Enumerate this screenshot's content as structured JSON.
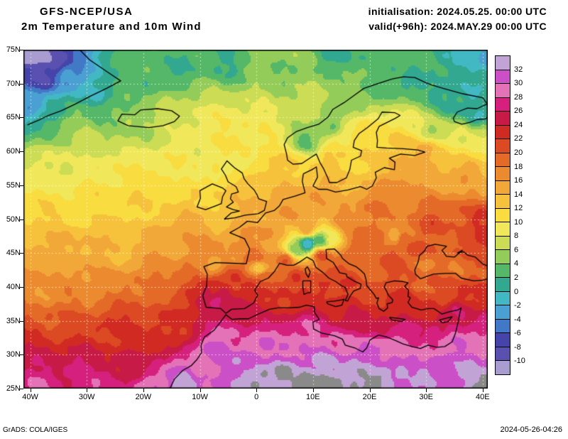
{
  "header": {
    "model": "GFS-NCEP/USA",
    "product": "2m Temperature and 10m Wind",
    "initialisation": "initialisation: 2024.05.25. 00:00 UTC",
    "valid": "valid(+96h): 2024.MAY.29 00:00 UTC"
  },
  "axes": {
    "lat_labels": [
      "75N",
      "70N",
      "65N",
      "60N",
      "55N",
      "50N",
      "45N",
      "40N",
      "35N",
      "30N",
      "25N"
    ],
    "lat_values": [
      75,
      70,
      65,
      60,
      55,
      50,
      45,
      40,
      35,
      30,
      25
    ],
    "lon_labels": [
      "40W",
      "30W",
      "20W",
      "10W",
      "0",
      "10E",
      "20E",
      "30E",
      "40E"
    ],
    "lon_values": [
      -40,
      -30,
      -20,
      -10,
      0,
      10,
      20,
      30,
      40
    ]
  },
  "colorbar": {
    "tick_labels": [
      "32",
      "30",
      "28",
      "26",
      "24",
      "22",
      "20",
      "18",
      "16",
      "14",
      "12",
      "10",
      "8",
      "6",
      "4",
      "2",
      "0",
      "-2",
      "-4",
      "-6",
      "-8",
      "-10"
    ],
    "segments": [
      {
        "min": 32,
        "color": "#c2a3d6"
      },
      {
        "min": 30,
        "color": "#cb4fc6"
      },
      {
        "min": 28,
        "color": "#e472b6"
      },
      {
        "min": 26,
        "color": "#d6207e"
      },
      {
        "min": 24,
        "color": "#c81a46"
      },
      {
        "min": 22,
        "color": "#d12a22"
      },
      {
        "min": 20,
        "color": "#dc4a24"
      },
      {
        "min": 18,
        "color": "#e46a28"
      },
      {
        "min": 16,
        "color": "#ec8a30"
      },
      {
        "min": 14,
        "color": "#f2a838"
      },
      {
        "min": 12,
        "color": "#f6c23c"
      },
      {
        "min": 10,
        "color": "#f8dc40"
      },
      {
        "min": 8,
        "color": "#f0e85a"
      },
      {
        "min": 6,
        "color": "#ccdc54"
      },
      {
        "min": 4,
        "color": "#94cc5a"
      },
      {
        "min": 2,
        "color": "#54b868"
      },
      {
        "min": 0,
        "color": "#32a890"
      },
      {
        "min": -2,
        "color": "#42b8c4"
      },
      {
        "min": -4,
        "color": "#4aa0d2"
      },
      {
        "min": -6,
        "color": "#4279c6"
      },
      {
        "min": -8,
        "color": "#4444aa"
      },
      {
        "min": -10,
        "color": "#5a50b0"
      },
      {
        "min": -999,
        "color": "#a89cd0"
      }
    ]
  },
  "footer": {
    "grads": "GrADS: COLA/IGES",
    "timestamp": "2024-05-26-04:26"
  },
  "chart_data": {
    "type": "heatmap",
    "title": "GFS-NCEP/USA 2m Temperature and 10m Wind",
    "units": "degC",
    "lon_range": [
      -41.2,
      40.9
    ],
    "lat_range": [
      25,
      75
    ],
    "levels": [
      32,
      30,
      28,
      26,
      24,
      22,
      20,
      18,
      16,
      14,
      12,
      10,
      8,
      6,
      4,
      2,
      0,
      -2,
      -4,
      -6,
      -8,
      -10
    ],
    "overflow_color": "#8a8a8a",
    "temperature_points_format": [
      "lon",
      "lat",
      "t2m_estimate_degC"
    ],
    "temperature_points": [
      [
        -40,
        75,
        -14
      ],
      [
        -36,
        73.5,
        -9
      ],
      [
        -38,
        71,
        -8
      ],
      [
        -33,
        71,
        -4
      ],
      [
        -40,
        67,
        -4
      ],
      [
        -36,
        66,
        1
      ],
      [
        -33,
        64,
        4
      ],
      [
        -28,
        69,
        0
      ],
      [
        -25,
        66,
        4
      ],
      [
        -30,
        62,
        7
      ],
      [
        -20,
        70,
        3
      ],
      [
        -15,
        72,
        2
      ],
      [
        -5,
        73,
        2
      ],
      [
        5,
        72,
        4
      ],
      [
        15,
        74,
        2
      ],
      [
        25,
        73,
        2
      ],
      [
        35,
        74,
        0
      ],
      [
        42,
        74,
        -3
      ],
      [
        43,
        71,
        1
      ],
      [
        -19,
        65,
        6
      ],
      [
        -17,
        64.8,
        7
      ],
      [
        -21,
        64.2,
        6
      ],
      [
        -35,
        58,
        9
      ],
      [
        -25,
        57,
        9.5
      ],
      [
        -30,
        52,
        11
      ],
      [
        -38,
        50,
        12
      ],
      [
        -20,
        52,
        11.5
      ],
      [
        -14,
        57,
        10
      ],
      [
        -10,
        60,
        9
      ],
      [
        0,
        60,
        10
      ],
      [
        -35,
        45,
        14
      ],
      [
        -25,
        45,
        14
      ],
      [
        -15,
        46,
        15
      ],
      [
        -4,
        45,
        16
      ],
      [
        -38,
        40,
        17
      ],
      [
        -28,
        40,
        17
      ],
      [
        -18,
        40,
        18
      ],
      [
        -35,
        34,
        21
      ],
      [
        -25,
        33,
        22
      ],
      [
        -15,
        33,
        22
      ],
      [
        -38,
        29,
        25
      ],
      [
        -30,
        28,
        26
      ],
      [
        -22,
        28,
        25
      ],
      [
        -39,
        25.5,
        28
      ],
      [
        -28,
        25.5,
        28
      ],
      [
        -18,
        25.5,
        30
      ],
      [
        -13,
        25.5,
        33
      ],
      [
        -10,
        28,
        29
      ],
      [
        -8,
        53.5,
        12
      ],
      [
        -3,
        54,
        13
      ],
      [
        -4.5,
        57.5,
        9
      ],
      [
        0,
        52,
        14.5
      ],
      [
        3,
        56,
        12
      ],
      [
        -6,
        50,
        13
      ],
      [
        2,
        48,
        17
      ],
      [
        0,
        44.5,
        19
      ],
      [
        5,
        44,
        20
      ],
      [
        6,
        51,
        16
      ],
      [
        10,
        52.5,
        16.5
      ],
      [
        9,
        48.5,
        16
      ],
      [
        -8,
        43,
        15
      ],
      [
        -4,
        41.5,
        22
      ],
      [
        -6,
        38.5,
        26
      ],
      [
        -3,
        37.5,
        25
      ],
      [
        -8.5,
        39.5,
        24
      ],
      [
        -1,
        39.5,
        22
      ],
      [
        1.5,
        41.5,
        20
      ],
      [
        -8,
        37,
        26
      ],
      [
        0.5,
        42.7,
        13
      ],
      [
        4,
        39,
        22
      ],
      [
        7,
        41,
        22
      ],
      [
        12,
        40,
        23
      ],
      [
        15,
        37,
        24
      ],
      [
        18,
        34.5,
        25
      ],
      [
        9,
        46.3,
        -2
      ],
      [
        11.5,
        46.8,
        3
      ],
      [
        7,
        45.5,
        4
      ],
      [
        13,
        47,
        8
      ],
      [
        11.5,
        44.5,
        21
      ],
      [
        14,
        42,
        21
      ],
      [
        16,
        40.5,
        22
      ],
      [
        17,
        44,
        18
      ],
      [
        21,
        42.5,
        19
      ],
      [
        22,
        39.5,
        21
      ],
      [
        24,
        37,
        23
      ],
      [
        26,
        41.5,
        20
      ],
      [
        16,
        50,
        17
      ],
      [
        21,
        52,
        18
      ],
      [
        19,
        47.5,
        19
      ],
      [
        24.5,
        47.3,
        15
      ],
      [
        26,
        47,
        20
      ],
      [
        28,
        45.5,
        22
      ],
      [
        24,
        44,
        21
      ],
      [
        19,
        46.5,
        20
      ],
      [
        31,
        49,
        21
      ],
      [
        35,
        50,
        20
      ],
      [
        40,
        50,
        22
      ],
      [
        43,
        47.5,
        24
      ],
      [
        37,
        46,
        21
      ],
      [
        33,
        46,
        19
      ],
      [
        30,
        43,
        18
      ],
      [
        35,
        43,
        18
      ],
      [
        41,
        43,
        19
      ],
      [
        29,
        39.5,
        20
      ],
      [
        33,
        38.5,
        20
      ],
      [
        38,
        38.5,
        23
      ],
      [
        42,
        38,
        24
      ],
      [
        36,
        36.5,
        26
      ],
      [
        30,
        36.5,
        23
      ],
      [
        27,
        38.5,
        22
      ],
      [
        33,
        34,
        26
      ],
      [
        35,
        31.5,
        30
      ],
      [
        40,
        33,
        29
      ],
      [
        42,
        35,
        28
      ],
      [
        31,
        31,
        29
      ],
      [
        28,
        33,
        26
      ],
      [
        -5,
        33,
        28
      ],
      [
        -7,
        31,
        31
      ],
      [
        -2,
        29,
        32
      ],
      [
        2,
        31,
        30
      ],
      [
        0,
        26.5,
        35
      ],
      [
        5,
        27.5,
        35
      ],
      [
        9,
        25.5,
        36
      ],
      [
        7,
        31,
        30
      ],
      [
        12,
        29,
        32
      ],
      [
        10,
        34,
        28
      ],
      [
        15,
        32,
        29
      ],
      [
        17,
        27,
        34
      ],
      [
        21,
        25.5,
        35
      ],
      [
        20,
        30,
        31
      ],
      [
        25,
        28,
        33
      ],
      [
        25,
        31.5,
        29
      ],
      [
        30,
        27,
        33
      ],
      [
        33,
        29,
        31
      ],
      [
        37,
        28,
        32
      ],
      [
        41,
        25.5,
        35
      ],
      [
        43,
        29,
        31
      ],
      [
        14,
        25.5,
        34
      ],
      [
        6,
        58.5,
        12
      ],
      [
        9,
        61.5,
        3
      ],
      [
        13,
        64,
        4
      ],
      [
        17,
        67.5,
        4
      ],
      [
        22,
        69.5,
        3
      ],
      [
        27,
        70.5,
        1
      ],
      [
        14,
        59,
        13
      ],
      [
        16,
        61.5,
        10
      ],
      [
        21,
        63,
        11
      ],
      [
        25,
        61.5,
        13
      ],
      [
        19,
        57.5,
        12
      ],
      [
        25,
        58.5,
        14
      ],
      [
        30,
        60,
        15
      ],
      [
        28,
        64,
        9
      ],
      [
        31,
        63,
        7
      ],
      [
        35,
        66.5,
        1
      ],
      [
        39,
        65.5,
        0
      ],
      [
        42,
        67,
        -1
      ],
      [
        38,
        68.5,
        0
      ],
      [
        33,
        68.5,
        1
      ],
      [
        43,
        63.5,
        5
      ],
      [
        36,
        62,
        8
      ],
      [
        33,
        58,
        14
      ],
      [
        38,
        57,
        16
      ],
      [
        42,
        57,
        15
      ],
      [
        40,
        60.5,
        10
      ],
      [
        43,
        60,
        9
      ],
      [
        14,
        54.5,
        15
      ],
      [
        24,
        54.5,
        17
      ],
      [
        5,
        53.5,
        14
      ]
    ]
  }
}
